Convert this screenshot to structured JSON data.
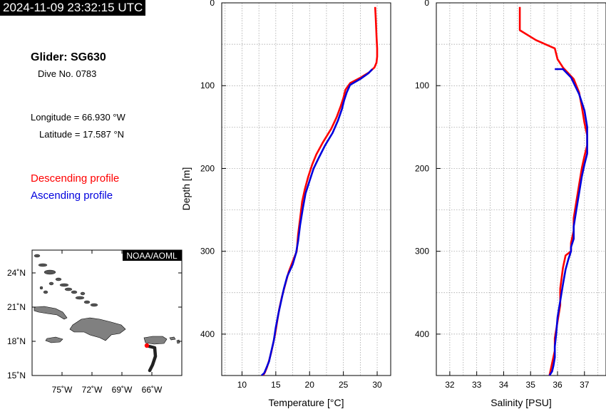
{
  "header": {
    "timestamp": "2024-11-09 23:32:15 UTC",
    "glider": "Glider: SG630",
    "dive": "Dive No. 0783",
    "longitude": "Longitude = 66.930 °W",
    "latitude": "Latitude = 17.587 °N"
  },
  "legend": {
    "descending": "Descending profile",
    "ascending": "Ascending profile",
    "descending_color": "#ff0000",
    "ascending_color": "#0000dd"
  },
  "map": {
    "credit": "NOAA/AOML",
    "lat_ticks": [
      {
        "value": 24,
        "label": "24˚N"
      },
      {
        "value": 21,
        "label": "21˚N"
      },
      {
        "value": 18,
        "label": "18˚N"
      },
      {
        "value": 15,
        "label": "15˚N"
      }
    ],
    "lon_ticks": [
      {
        "value": -75,
        "label": "75˚W"
      },
      {
        "value": -72,
        "label": "72˚W"
      },
      {
        "value": -69,
        "label": "69˚W"
      },
      {
        "value": -66,
        "label": "66˚W"
      }
    ],
    "lon_range": [
      -78,
      -63
    ],
    "lat_range": [
      15,
      26
    ],
    "land_color": "#808080",
    "track_color": "#222222",
    "current_position_color": "#ff0000"
  },
  "chart_data": [
    {
      "type": "line",
      "xlabel": "Temperature [°C]",
      "ylabel": "Depth [m]",
      "xlim": [
        7,
        32
      ],
      "ylim": [
        0,
        450
      ],
      "y_inverted": true,
      "xticks": [
        10,
        15,
        20,
        25,
        30
      ],
      "yticks": [
        0,
        100,
        200,
        300,
        400
      ],
      "grid": true,
      "series": [
        {
          "color": "#ff0000",
          "x": [
            29.7,
            29.8,
            29.9,
            30.0,
            30.0,
            29.9,
            29.6,
            28.8,
            27.6,
            26.0,
            25.3,
            25.0,
            24.6,
            24.0,
            23.2,
            22.0,
            21.0,
            20.4,
            19.8,
            19.3,
            18.9,
            18.6,
            18.3,
            18.1,
            17.6,
            16.9,
            16.4,
            15.9,
            15.5,
            15.2,
            14.9,
            14.6,
            14.3,
            14.0,
            13.7,
            13.4,
            13.1
          ],
          "y": [
            5,
            20,
            40,
            55,
            65,
            72,
            78,
            84,
            90,
            97,
            105,
            115,
            125,
            138,
            152,
            168,
            183,
            195,
            210,
            225,
            240,
            260,
            280,
            300,
            310,
            325,
            340,
            355,
            370,
            385,
            400,
            412,
            423,
            432,
            440,
            446,
            450
          ]
        },
        {
          "color": "#0000dd",
          "x": [
            29.3,
            28.7,
            27.5,
            26.0,
            25.5,
            25.1,
            24.8,
            24.2,
            23.4,
            22.3,
            21.3,
            20.6,
            20.0,
            19.4,
            19.0,
            18.6,
            18.3,
            18.0,
            17.5,
            16.7,
            16.2,
            15.8,
            15.4,
            15.0,
            14.7,
            14.3,
            14.0,
            13.6,
            13.3,
            12.9
          ],
          "y": [
            80,
            85,
            92,
            99,
            108,
            118,
            128,
            142,
            157,
            172,
            188,
            200,
            215,
            230,
            248,
            268,
            288,
            302,
            316,
            330,
            345,
            360,
            375,
            392,
            408,
            422,
            433,
            441,
            447,
            450
          ]
        }
      ]
    },
    {
      "type": "line",
      "xlabel": "Salinity [PSU]",
      "ylabel": "",
      "xlim": [
        31.5,
        37.8
      ],
      "ylim": [
        0,
        450
      ],
      "y_inverted": true,
      "xticks": [
        32,
        33,
        34,
        35,
        36,
        37
      ],
      "yticks": [
        0,
        100,
        200,
        300,
        400
      ],
      "grid": true,
      "series": [
        {
          "color": "#ff0000",
          "x": [
            34.6,
            34.6,
            34.6,
            35.2,
            35.9,
            36.0,
            36.2,
            36.6,
            36.8,
            36.9,
            37.0,
            37.1,
            37.1,
            37.0,
            36.9,
            36.8,
            36.7,
            36.6,
            36.6,
            36.5,
            36.5,
            36.3,
            36.2,
            36.1,
            36.1,
            36.0,
            35.9,
            35.9,
            35.8,
            35.7
          ],
          "y": [
            5,
            20,
            33,
            45,
            55,
            68,
            78,
            92,
            108,
            125,
            145,
            160,
            172,
            185,
            200,
            220,
            240,
            260,
            275,
            290,
            300,
            305,
            320,
            345,
            365,
            385,
            405,
            420,
            435,
            450
          ]
        },
        {
          "color": "#0000dd",
          "x": [
            35.9,
            36.2,
            36.5,
            36.8,
            37.0,
            37.1,
            37.1,
            37.1,
            37.0,
            36.9,
            36.8,
            36.7,
            36.6,
            36.6,
            36.5,
            36.5,
            36.4,
            36.3,
            36.2,
            36.1,
            36.0,
            35.95,
            35.9,
            35.9,
            35.85,
            35.8,
            35.7
          ],
          "y": [
            80,
            80,
            90,
            110,
            130,
            150,
            170,
            182,
            195,
            210,
            230,
            250,
            270,
            285,
            295,
            300,
            310,
            322,
            340,
            360,
            380,
            400,
            415,
            428,
            438,
            445,
            450
          ]
        }
      ]
    }
  ]
}
